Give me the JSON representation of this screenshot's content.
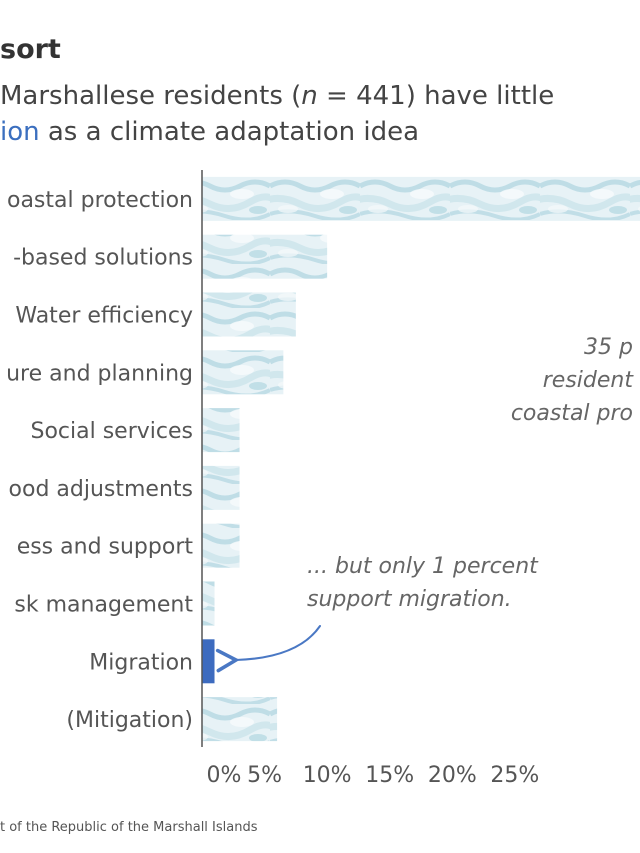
{
  "title": "sort",
  "subtitle": {
    "part1": "Marshallese residents (",
    "n_var": "n",
    "part2": " = 441) have little",
    "highlight": "ion",
    "part3": " as a climate adaptation idea"
  },
  "source": "t of the Republic of the Marshall Islands",
  "colors": {
    "bar_texture_light": "#e6f1f5",
    "bar_texture_dark": "#a7d0dc",
    "highlight_bar": "#3d6bbf",
    "arrow": "#4a78c4",
    "highlight_text": "#3b6fbf"
  },
  "chart_data": {
    "type": "bar",
    "orientation": "horizontal",
    "categories": [
      "oastal protection",
      "-based solutions",
      "Water efficiency",
      "ure and planning",
      "Social services",
      "ood adjustments",
      "ess and support",
      "sk management",
      "Migration",
      "(Mitigation)"
    ],
    "values": [
      35,
      10,
      7.5,
      6.5,
      3.0,
      3.0,
      3.0,
      1.0,
      1.0,
      6.0
    ],
    "highlight_index": 8,
    "xlim": [
      0,
      35
    ],
    "x_ticks": [
      0,
      5,
      10,
      15,
      20,
      25
    ],
    "x_tick_labels": [
      "0%",
      "5%",
      "10%",
      "15%",
      "20%",
      "25%"
    ],
    "grid": false,
    "annotations": [
      {
        "lines": [
          "35 p",
          "resident",
          "coastal pro"
        ]
      },
      {
        "lines": [
          "... but only 1 percent",
          "support migration."
        ]
      }
    ]
  }
}
